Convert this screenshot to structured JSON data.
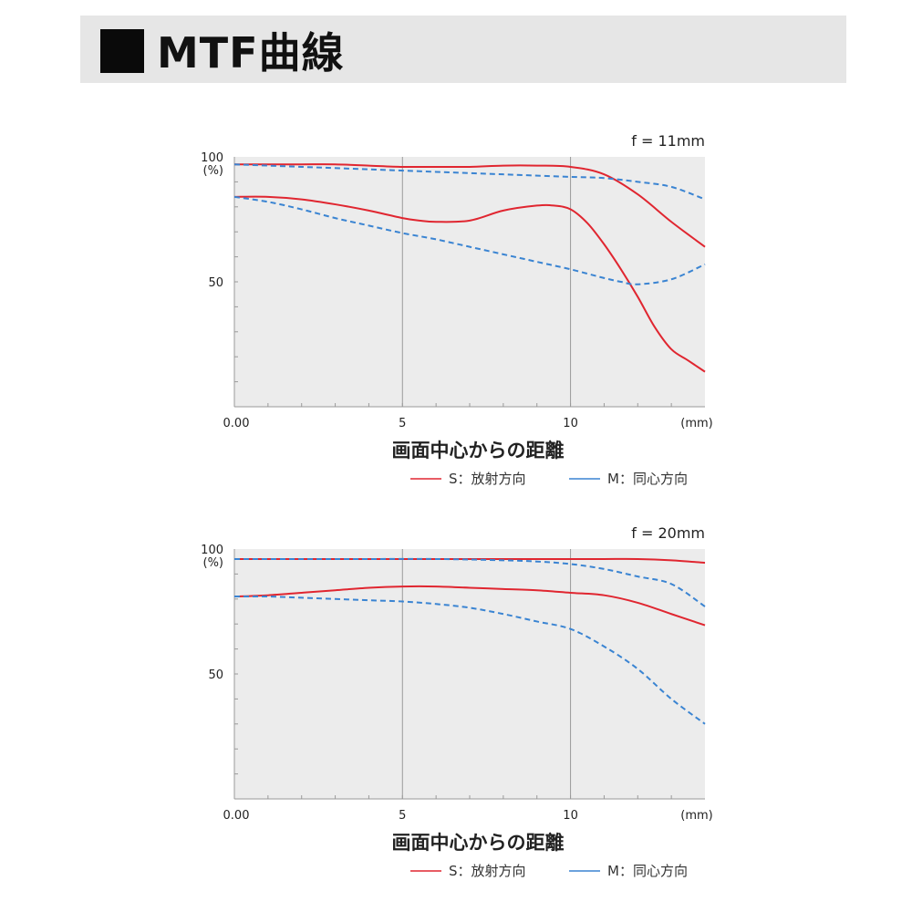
{
  "header": {
    "title": "MTF曲線"
  },
  "chart_data": [
    {
      "type": "line",
      "focal": "f = 11mm",
      "xlabel": "画面中心からの距離",
      "unit": "(mm)",
      "y_unit": "(%)",
      "xlim": [
        0,
        14
      ],
      "ylim": [
        0,
        100
      ],
      "x_ticks": [
        {
          "value": 0,
          "label": "0.00"
        },
        {
          "value": 5,
          "label": "5"
        },
        {
          "value": 10,
          "label": "10"
        }
      ],
      "y_ticks": [
        {
          "value": 100,
          "label": "100"
        },
        {
          "value": 50,
          "label": "50"
        }
      ],
      "grid": "vertical at 5 and 10",
      "legend": "bottom-right",
      "series": [
        {
          "name": "S：放射方向",
          "color": "#e02630",
          "dash": false,
          "x": [
            0,
            1,
            2,
            3,
            4,
            5,
            6,
            7,
            8,
            9,
            10,
            11,
            12,
            13,
            14
          ],
          "y": [
            97,
            97,
            97,
            97,
            96.5,
            96,
            96,
            96,
            96.5,
            96.5,
            96,
            93,
            85,
            74,
            64
          ]
        },
        {
          "name": "S：放射方向",
          "color": "#e02630",
          "dash": false,
          "x": [
            0,
            1,
            2,
            3,
            4,
            5,
            5.5,
            6,
            7,
            8,
            9,
            9.5,
            10,
            10.5,
            11,
            11.5,
            12,
            12.5,
            13,
            13.5,
            14
          ],
          "y": [
            84,
            84,
            83,
            81,
            78.5,
            75.5,
            74.5,
            74,
            74.5,
            78.5,
            80.5,
            80.5,
            79,
            73.5,
            65,
            55,
            44,
            32,
            23,
            18.5,
            14
          ]
        },
        {
          "name": "M：同心方向",
          "color": "#3a84d2",
          "dash": true,
          "x": [
            0,
            2,
            4,
            6,
            8,
            10,
            11,
            12,
            13,
            14
          ],
          "y": [
            97,
            96,
            95,
            94,
            93,
            92,
            91.5,
            90,
            88,
            83
          ]
        },
        {
          "name": "M：同心方向",
          "color": "#3a84d2",
          "dash": true,
          "x": [
            0,
            1,
            2,
            3,
            4,
            5,
            6,
            7,
            8,
            9,
            10,
            11,
            11.5,
            12,
            13,
            14
          ],
          "y": [
            84,
            82,
            79,
            75.5,
            72.5,
            69.5,
            67,
            64,
            61,
            58,
            55,
            51.5,
            50,
            49,
            51,
            57
          ]
        }
      ]
    },
    {
      "type": "line",
      "focal": "f = 20mm",
      "xlabel": "画面中心からの距離",
      "unit": "(mm)",
      "y_unit": "(%)",
      "xlim": [
        0,
        14
      ],
      "ylim": [
        0,
        100
      ],
      "x_ticks": [
        {
          "value": 0,
          "label": "0.00"
        },
        {
          "value": 5,
          "label": "5"
        },
        {
          "value": 10,
          "label": "10"
        }
      ],
      "y_ticks": [
        {
          "value": 100,
          "label": "100"
        },
        {
          "value": 50,
          "label": "50"
        }
      ],
      "grid": "vertical at 5 and 10",
      "legend": "bottom-right",
      "series": [
        {
          "name": "S：放射方向",
          "color": "#e02630",
          "dash": false,
          "x": [
            0,
            2,
            4,
            6,
            8,
            10,
            11,
            12,
            13,
            14
          ],
          "y": [
            96,
            96,
            96,
            96,
            96,
            96,
            96,
            96,
            95.5,
            94.5
          ]
        },
        {
          "name": "S：放射方向",
          "color": "#e02630",
          "dash": false,
          "x": [
            0,
            1,
            2,
            3,
            4,
            5,
            6,
            7,
            8,
            9,
            10,
            11,
            12,
            13,
            14
          ],
          "y": [
            81,
            81.5,
            82.5,
            83.5,
            84.5,
            85,
            85,
            84.5,
            84,
            83.5,
            82.5,
            81.5,
            78.5,
            74,
            69.5
          ]
        },
        {
          "name": "M：同心方向",
          "color": "#3a84d2",
          "dash": true,
          "x": [
            0,
            2,
            4,
            6,
            8,
            9,
            10,
            11,
            12,
            13,
            14
          ],
          "y": [
            96,
            96,
            96,
            96,
            95.5,
            95,
            94,
            92,
            89,
            86,
            77
          ]
        },
        {
          "name": "M：同心方向",
          "color": "#3a84d2",
          "dash": true,
          "x": [
            0,
            1,
            2,
            3,
            4,
            5,
            6,
            7,
            8,
            9,
            10,
            11,
            12,
            13,
            14
          ],
          "y": [
            81,
            81,
            80.5,
            80,
            79.5,
            79,
            78,
            76.5,
            74,
            71,
            68,
            61,
            52,
            40,
            30
          ]
        }
      ]
    }
  ],
  "legend": {
    "s_label": "S：放射方向",
    "m_label": "M：同心方向",
    "s_color": "#e02630",
    "m_color": "#3a84d2"
  }
}
